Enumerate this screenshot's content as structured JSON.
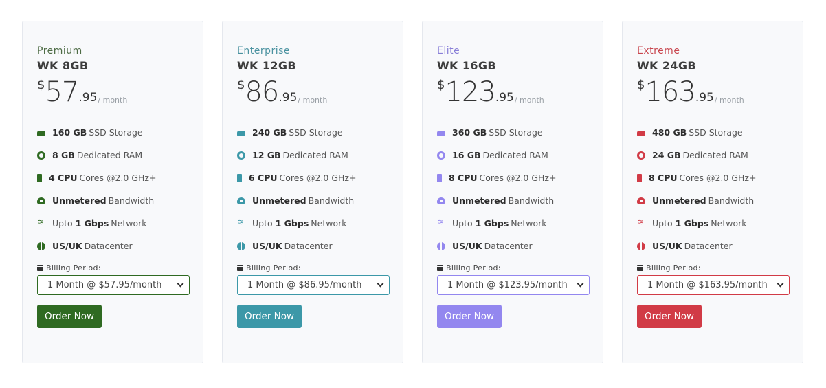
{
  "plans": [
    {
      "tier": "Premium",
      "name": "WK 8GB",
      "currency": "$",
      "price_int": "57",
      "price_dec": ".95",
      "period": "/ month",
      "accent": "#2f6a22",
      "tier_color": "#4d6b44",
      "features": [
        {
          "icon": "hdd-icon",
          "bold": "160 GB",
          "text": "SSD Storage"
        },
        {
          "icon": "ram-icon",
          "bold": "8 GB",
          "text": "Dedicated RAM"
        },
        {
          "icon": "cpu-icon",
          "bold": "4 CPU",
          "text": "Cores @2.0 GHz+"
        },
        {
          "icon": "cloud-icon",
          "bold": "Unmetered",
          "text": "Bandwidth"
        },
        {
          "icon": "wifi-icon",
          "pre": "Upto",
          "bold": "1 Gbps",
          "text": "Network"
        },
        {
          "icon": "globe-icon",
          "bold": "US/UK",
          "text": "Datacenter"
        }
      ],
      "billing_label": "Billing Period:",
      "billing_value": "1 Month @ $57.95/month",
      "order_label": "Order Now"
    },
    {
      "tier": "Enterprise",
      "name": "WK 12GB",
      "currency": "$",
      "price_int": "86",
      "price_dec": ".95",
      "period": "/ month",
      "accent": "#3c98a8",
      "tier_color": "#4a92a0",
      "features": [
        {
          "icon": "hdd-icon",
          "bold": "240 GB",
          "text": "SSD Storage"
        },
        {
          "icon": "ram-icon",
          "bold": "12 GB",
          "text": "Dedicated RAM"
        },
        {
          "icon": "cpu-icon",
          "bold": "6 CPU",
          "text": "Cores @2.0 GHz+"
        },
        {
          "icon": "cloud-icon",
          "bold": "Unmetered",
          "text": "Bandwidth"
        },
        {
          "icon": "wifi-icon",
          "pre": "Upto",
          "bold": "1 Gbps",
          "text": "Network"
        },
        {
          "icon": "globe-icon",
          "bold": "US/UK",
          "text": "Datacenter"
        }
      ],
      "billing_label": "Billing Period:",
      "billing_value": "1 Month @ $86.95/month",
      "order_label": "Order Now"
    },
    {
      "tier": "Elite",
      "name": "WK 16GB",
      "currency": "$",
      "price_int": "123",
      "price_dec": ".95",
      "period": "/ month",
      "accent": "#9387ef",
      "tier_color": "#8a80d8",
      "features": [
        {
          "icon": "hdd-icon",
          "bold": "360 GB",
          "text": "SSD Storage"
        },
        {
          "icon": "ram-icon",
          "bold": "16 GB",
          "text": "Dedicated RAM"
        },
        {
          "icon": "cpu-icon",
          "bold": "8 CPU",
          "text": "Cores @2.0 GHz+"
        },
        {
          "icon": "cloud-icon",
          "bold": "Unmetered",
          "text": "Bandwidth"
        },
        {
          "icon": "wifi-icon",
          "pre": "Upto",
          "bold": "1 Gbps",
          "text": "Network"
        },
        {
          "icon": "globe-icon",
          "bold": "US/UK",
          "text": "Datacenter"
        }
      ],
      "billing_label": "Billing Period:",
      "billing_value": "1 Month @ $123.95/month",
      "order_label": "Order Now"
    },
    {
      "tier": "Extreme",
      "name": "WK 24GB",
      "currency": "$",
      "price_int": "163",
      "price_dec": ".95",
      "period": "/ month",
      "accent": "#d13b46",
      "tier_color": "#c9474f",
      "features": [
        {
          "icon": "hdd-icon",
          "bold": "480 GB",
          "text": "SSD Storage"
        },
        {
          "icon": "ram-icon",
          "bold": "24 GB",
          "text": "Dedicated RAM"
        },
        {
          "icon": "cpu-icon",
          "bold": "8 CPU",
          "text": "Cores @2.0 GHz+"
        },
        {
          "icon": "cloud-icon",
          "bold": "Unmetered",
          "text": "Bandwidth"
        },
        {
          "icon": "wifi-icon",
          "pre": "Upto",
          "bold": "1 Gbps",
          "text": "Network"
        },
        {
          "icon": "globe-icon",
          "bold": "US/UK",
          "text": "Datacenter"
        }
      ],
      "billing_label": "Billing Period:",
      "billing_value": "1 Month @ $163.95/month",
      "order_label": "Order Now"
    }
  ]
}
